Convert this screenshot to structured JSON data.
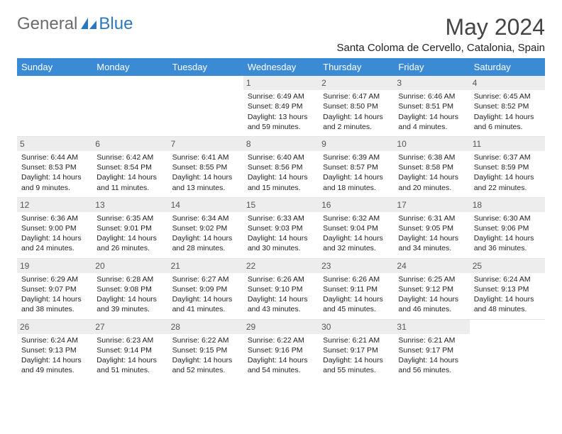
{
  "brand": {
    "word1": "General",
    "word2": "Blue"
  },
  "title": "May 2024",
  "location": "Santa Coloma de Cervello, Catalonia, Spain",
  "colors": {
    "header_bg": "#3b8bd4",
    "header_text": "#ffffff",
    "daynum_bg": "#ededed",
    "daynum_text": "#555555",
    "body_bg": "#ffffff",
    "text": "#222222",
    "logo_gray": "#6b6b6b",
    "logo_blue": "#2f77bd"
  },
  "weekday_headers": [
    "Sunday",
    "Monday",
    "Tuesday",
    "Wednesday",
    "Thursday",
    "Friday",
    "Saturday"
  ],
  "layout": {
    "first_weekday_index": 3,
    "days_in_month": 31
  },
  "labels": {
    "sunrise": "Sunrise:",
    "sunset": "Sunset:",
    "daylight": "Daylight:"
  },
  "days": [
    {
      "n": 1,
      "sunrise": "6:49 AM",
      "sunset": "8:49 PM",
      "daylight": "13 hours and 59 minutes."
    },
    {
      "n": 2,
      "sunrise": "6:47 AM",
      "sunset": "8:50 PM",
      "daylight": "14 hours and 2 minutes."
    },
    {
      "n": 3,
      "sunrise": "6:46 AM",
      "sunset": "8:51 PM",
      "daylight": "14 hours and 4 minutes."
    },
    {
      "n": 4,
      "sunrise": "6:45 AM",
      "sunset": "8:52 PM",
      "daylight": "14 hours and 6 minutes."
    },
    {
      "n": 5,
      "sunrise": "6:44 AM",
      "sunset": "8:53 PM",
      "daylight": "14 hours and 9 minutes."
    },
    {
      "n": 6,
      "sunrise": "6:42 AM",
      "sunset": "8:54 PM",
      "daylight": "14 hours and 11 minutes."
    },
    {
      "n": 7,
      "sunrise": "6:41 AM",
      "sunset": "8:55 PM",
      "daylight": "14 hours and 13 minutes."
    },
    {
      "n": 8,
      "sunrise": "6:40 AM",
      "sunset": "8:56 PM",
      "daylight": "14 hours and 15 minutes."
    },
    {
      "n": 9,
      "sunrise": "6:39 AM",
      "sunset": "8:57 PM",
      "daylight": "14 hours and 18 minutes."
    },
    {
      "n": 10,
      "sunrise": "6:38 AM",
      "sunset": "8:58 PM",
      "daylight": "14 hours and 20 minutes."
    },
    {
      "n": 11,
      "sunrise": "6:37 AM",
      "sunset": "8:59 PM",
      "daylight": "14 hours and 22 minutes."
    },
    {
      "n": 12,
      "sunrise": "6:36 AM",
      "sunset": "9:00 PM",
      "daylight": "14 hours and 24 minutes."
    },
    {
      "n": 13,
      "sunrise": "6:35 AM",
      "sunset": "9:01 PM",
      "daylight": "14 hours and 26 minutes."
    },
    {
      "n": 14,
      "sunrise": "6:34 AM",
      "sunset": "9:02 PM",
      "daylight": "14 hours and 28 minutes."
    },
    {
      "n": 15,
      "sunrise": "6:33 AM",
      "sunset": "9:03 PM",
      "daylight": "14 hours and 30 minutes."
    },
    {
      "n": 16,
      "sunrise": "6:32 AM",
      "sunset": "9:04 PM",
      "daylight": "14 hours and 32 minutes."
    },
    {
      "n": 17,
      "sunrise": "6:31 AM",
      "sunset": "9:05 PM",
      "daylight": "14 hours and 34 minutes."
    },
    {
      "n": 18,
      "sunrise": "6:30 AM",
      "sunset": "9:06 PM",
      "daylight": "14 hours and 36 minutes."
    },
    {
      "n": 19,
      "sunrise": "6:29 AM",
      "sunset": "9:07 PM",
      "daylight": "14 hours and 38 minutes."
    },
    {
      "n": 20,
      "sunrise": "6:28 AM",
      "sunset": "9:08 PM",
      "daylight": "14 hours and 39 minutes."
    },
    {
      "n": 21,
      "sunrise": "6:27 AM",
      "sunset": "9:09 PM",
      "daylight": "14 hours and 41 minutes."
    },
    {
      "n": 22,
      "sunrise": "6:26 AM",
      "sunset": "9:10 PM",
      "daylight": "14 hours and 43 minutes."
    },
    {
      "n": 23,
      "sunrise": "6:26 AM",
      "sunset": "9:11 PM",
      "daylight": "14 hours and 45 minutes."
    },
    {
      "n": 24,
      "sunrise": "6:25 AM",
      "sunset": "9:12 PM",
      "daylight": "14 hours and 46 minutes."
    },
    {
      "n": 25,
      "sunrise": "6:24 AM",
      "sunset": "9:13 PM",
      "daylight": "14 hours and 48 minutes."
    },
    {
      "n": 26,
      "sunrise": "6:24 AM",
      "sunset": "9:13 PM",
      "daylight": "14 hours and 49 minutes."
    },
    {
      "n": 27,
      "sunrise": "6:23 AM",
      "sunset": "9:14 PM",
      "daylight": "14 hours and 51 minutes."
    },
    {
      "n": 28,
      "sunrise": "6:22 AM",
      "sunset": "9:15 PM",
      "daylight": "14 hours and 52 minutes."
    },
    {
      "n": 29,
      "sunrise": "6:22 AM",
      "sunset": "9:16 PM",
      "daylight": "14 hours and 54 minutes."
    },
    {
      "n": 30,
      "sunrise": "6:21 AM",
      "sunset": "9:17 PM",
      "daylight": "14 hours and 55 minutes."
    },
    {
      "n": 31,
      "sunrise": "6:21 AM",
      "sunset": "9:17 PM",
      "daylight": "14 hours and 56 minutes."
    }
  ]
}
